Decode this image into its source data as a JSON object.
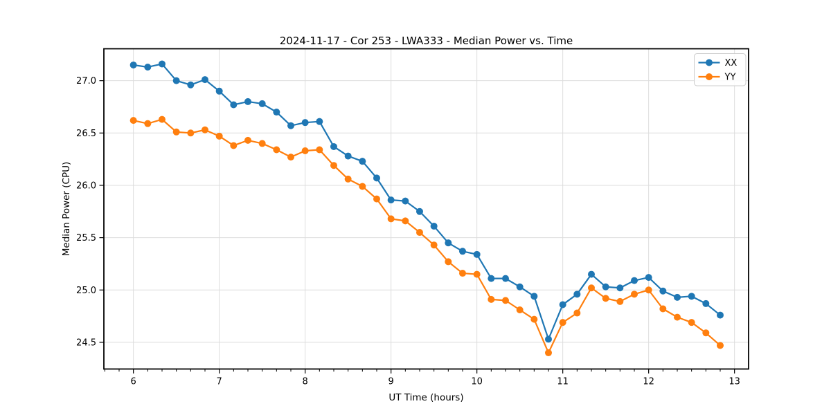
{
  "title": "2024-11-17 - Cor 253 - LWA333 - Median Power vs. Time",
  "chart_data": {
    "type": "line",
    "title": "2024-11-17 - Cor 253 - LWA333 - Median Power vs. Time",
    "xlabel": "UT Time (hours)",
    "ylabel": "Median Power (CPU)",
    "xlim": [
      5.656,
      13.164
    ],
    "ylim": [
      24.245,
      27.305
    ],
    "xticks": [
      6,
      7,
      8,
      9,
      10,
      11,
      12,
      13
    ],
    "yticks": [
      24.5,
      25.0,
      25.5,
      26.0,
      26.5,
      27.0
    ],
    "x_minor_tick_interval": 0.166667,
    "grid": true,
    "legend_position": "upper right",
    "background": "#ffffff",
    "grid_color": "#dcdcdc",
    "x": [
      6.0,
      6.1667,
      6.3333,
      6.5,
      6.6667,
      6.8333,
      7.0,
      7.1667,
      7.3333,
      7.5,
      7.6667,
      7.8333,
      8.0,
      8.1667,
      8.3333,
      8.5,
      8.6667,
      8.8333,
      9.0,
      9.1667,
      9.3333,
      9.5,
      9.6667,
      9.8333,
      10.0,
      10.1667,
      10.3333,
      10.5,
      10.6667,
      10.8333,
      11.0,
      11.1667,
      11.3333,
      11.5,
      11.6667,
      11.8333,
      12.0,
      12.1667,
      12.3333,
      12.5,
      12.6667,
      12.8333
    ],
    "series": [
      {
        "name": "XX",
        "color": "#1f77b4",
        "values": [
          27.15,
          27.13,
          27.16,
          27.0,
          26.96,
          27.01,
          26.9,
          26.77,
          26.8,
          26.78,
          26.7,
          26.57,
          26.6,
          26.61,
          26.37,
          26.28,
          26.23,
          26.07,
          25.86,
          25.85,
          25.75,
          25.61,
          25.45,
          25.37,
          25.34,
          25.11,
          25.11,
          25.03,
          24.94,
          24.53,
          24.86,
          24.96,
          25.15,
          25.03,
          25.02,
          25.09,
          25.12,
          24.99,
          24.93,
          24.94,
          24.87,
          24.76
        ]
      },
      {
        "name": "YY",
        "color": "#ff7f0e",
        "values": [
          26.62,
          26.59,
          26.63,
          26.51,
          26.5,
          26.53,
          26.47,
          26.38,
          26.43,
          26.4,
          26.34,
          26.27,
          26.33,
          26.34,
          26.19,
          26.06,
          25.99,
          25.87,
          25.68,
          25.66,
          25.55,
          25.43,
          25.27,
          25.16,
          25.15,
          24.91,
          24.9,
          24.81,
          24.72,
          24.4,
          24.69,
          24.78,
          25.02,
          24.92,
          24.89,
          24.96,
          25.0,
          24.82,
          24.74,
          24.69,
          24.59,
          24.47
        ]
      }
    ]
  }
}
